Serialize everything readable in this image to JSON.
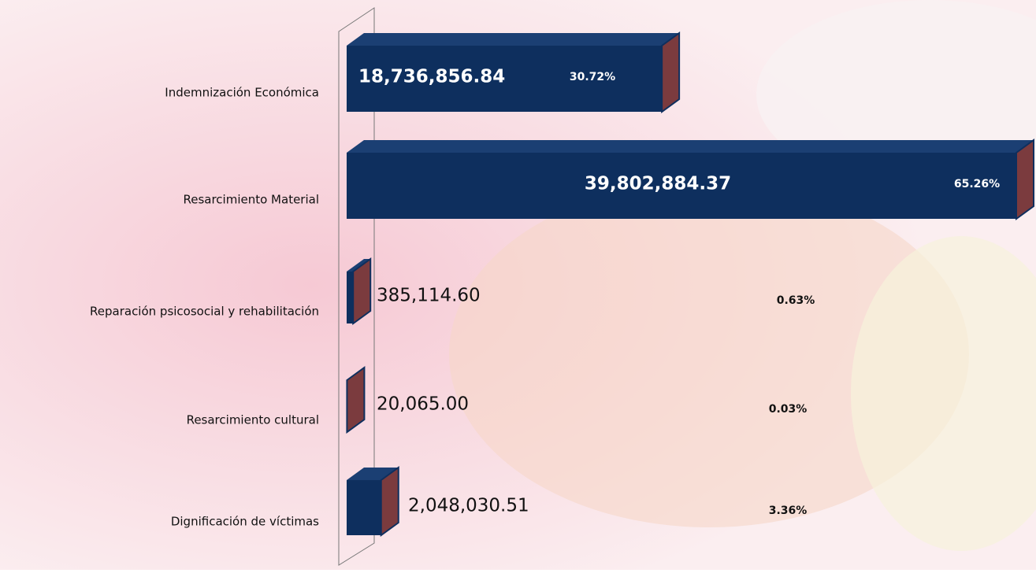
{
  "chart_data": {
    "type": "bar",
    "orientation": "horizontal",
    "categories": [
      "Indemnización Económica",
      "Resarcimiento Material",
      "Reparación psicosocial y rehabilitación",
      "Resarcimiento cultural",
      "Dignificación de víctimas"
    ],
    "values": [
      18736856.84,
      39802884.37,
      385114.6,
      20065.0,
      2048030.51
    ],
    "value_labels": [
      "18,736,856.84",
      "39,802,884.37",
      "385,114.60",
      "20,065.00",
      "2,048,030.51"
    ],
    "percentages": [
      30.72,
      65.26,
      0.63,
      0.03,
      3.36
    ],
    "percentage_labels": [
      "30.72%",
      "65.26%",
      "0.63%",
      "0.03%",
      "3.36%"
    ],
    "color": "#0e2f5e",
    "side_color": "#7b3b3e"
  }
}
